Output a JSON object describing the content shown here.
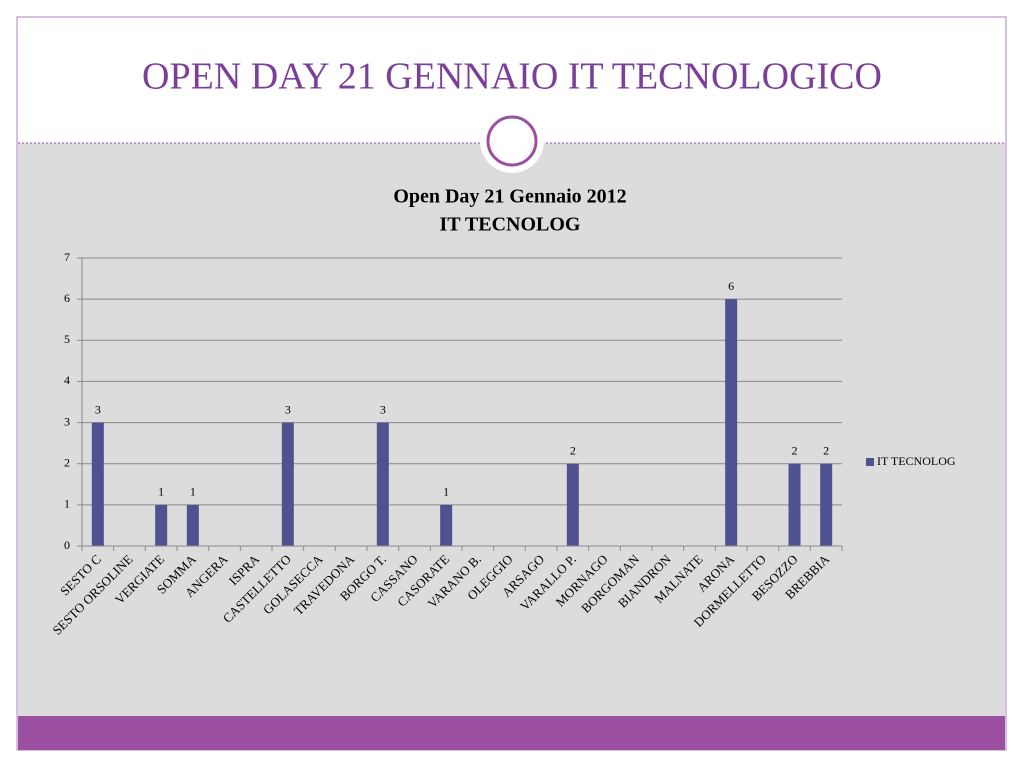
{
  "slide_title": "OPEN DAY 21 GENNAIO IT TECNOLOGICO",
  "chart_data": {
    "type": "bar",
    "title": "Open Day 21 Gennaio 2012",
    "subtitle": "IT TECNOLOG",
    "categories": [
      "SESTO C",
      "SESTO ORSOLINE",
      "VERGIATE",
      "SOMMA",
      "ANGERA",
      "ISPRA",
      "CASTELLETTO",
      "GOLASECCA",
      "TRAVEDONA",
      "BORGO T.",
      "CASSANO",
      "CASORATE",
      "VARANO B.",
      "OLEGGIO",
      "ARSAGO",
      "VARALLO P.",
      "MORNAGO",
      "BORGOMAN",
      "BIANDRON",
      "MALNATE",
      "ARONA",
      "DORMELLETTO",
      "BESOZZO",
      "BREBBIA"
    ],
    "series": [
      {
        "name": "IT TECNOLOG",
        "color": "#4f5190",
        "values": [
          3,
          null,
          1,
          1,
          null,
          null,
          3,
          null,
          null,
          3,
          null,
          1,
          null,
          null,
          null,
          2,
          null,
          null,
          null,
          null,
          6,
          null,
          2,
          2
        ]
      }
    ],
    "ylim": [
      0,
      7
    ],
    "yticks": [
      0,
      1,
      2,
      3,
      4,
      5,
      6,
      7
    ],
    "grid": true,
    "legend": "right"
  }
}
